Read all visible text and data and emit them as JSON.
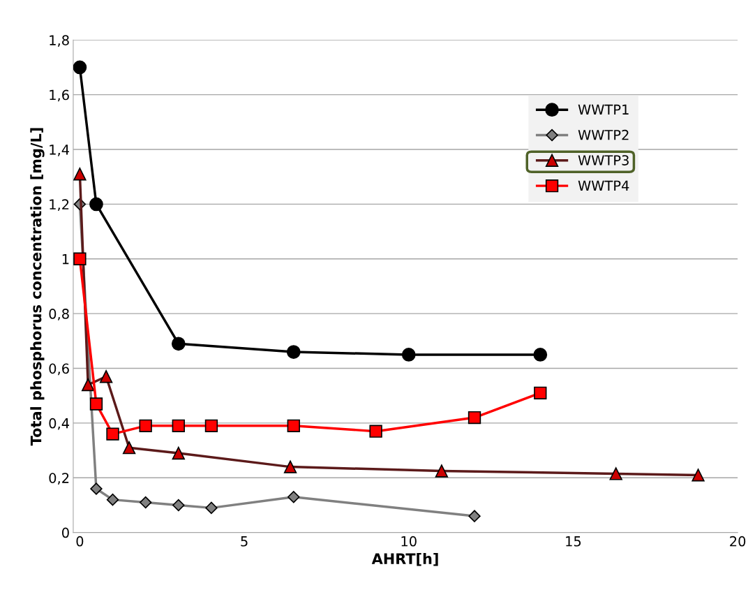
{
  "chart_data": {
    "type": "line",
    "xlabel": "AHRT[h]",
    "ylabel": "Total phosphorus concentration [mg/L]",
    "xlim": [
      -0.2,
      20
    ],
    "xticks": [
      0,
      5,
      10,
      15,
      20
    ],
    "ylim": [
      0,
      1.8
    ],
    "yticks": [
      0,
      {
        "value": 0.2,
        "label": "0,2"
      },
      {
        "value": 0.4,
        "label": "0,4"
      },
      {
        "value": 0.6,
        "label": "0,6"
      },
      {
        "value": 0.8,
        "label": "0,8"
      },
      1,
      {
        "value": 1.2,
        "label": "1,2"
      },
      {
        "value": 1.4,
        "label": "1,4"
      },
      {
        "value": 1.6,
        "label": "1,6"
      },
      {
        "value": 1.8,
        "label": "1,8"
      }
    ],
    "grid": "y",
    "legend": "top right",
    "line_style": "solid",
    "series": [
      {
        "name": "WWTP1",
        "color": "#000000",
        "marker": "circle",
        "x": [
          0,
          0.5,
          3,
          6.5,
          10,
          14
        ],
        "values": [
          1.7,
          1.2,
          0.69,
          0.66,
          0.65,
          0.65
        ]
      },
      {
        "name": "WWTP2",
        "color": "#808080",
        "marker": "diamond",
        "x": [
          0,
          0.5,
          1,
          2,
          3,
          4,
          6.5,
          12
        ],
        "values": [
          1.2,
          0.16,
          0.12,
          0.11,
          0.1,
          0.09,
          0.13,
          0.06
        ]
      },
      {
        "name": "WWTP3",
        "color": "#5c1a1a",
        "marker": "triangle",
        "x": [
          0,
          0.25,
          0.8,
          1.5,
          3,
          6.4,
          11,
          16.3,
          18.8
        ],
        "values": [
          1.31,
          0.54,
          0.57,
          0.31,
          0.29,
          0.24,
          0.225,
          0.215,
          0.21
        ]
      },
      {
        "name": "WWTP4",
        "color": "#ff0000",
        "marker": "square",
        "x": [
          0,
          0.5,
          1,
          2,
          3,
          4,
          6.5,
          9,
          12,
          14
        ],
        "values": [
          1.0,
          0.47,
          0.36,
          0.39,
          0.39,
          0.39,
          0.39,
          0.37,
          0.42,
          0.51
        ]
      }
    ]
  }
}
